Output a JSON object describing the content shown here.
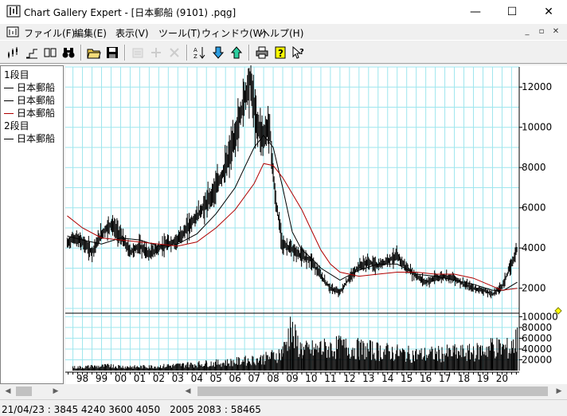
{
  "window": {
    "title": "Chart Gallery Expert - [日本郵船 (9101) .pqg]",
    "minimize_glyph": "—",
    "maximize_glyph": "☐",
    "close_glyph": "✕"
  },
  "menu": {
    "items": [
      {
        "label": "ファイル(F)"
      },
      {
        "label": "編集(E)"
      },
      {
        "label": "表示(V)"
      },
      {
        "label": "ツール(T)"
      },
      {
        "label": "ウィンドウ(W)"
      },
      {
        "label": "ヘルプ(H)"
      }
    ],
    "mdi_minimize_glyph": "_",
    "mdi_restore_glyph": "▫",
    "mdi_close_glyph": "✕"
  },
  "toolbar": {
    "buttons": [
      {
        "icon": "candlestick-chart-icon",
        "enabled": true
      },
      {
        "icon": "step-chart-icon",
        "enabled": true
      },
      {
        "icon": "split-view-icon",
        "enabled": true
      },
      {
        "icon": "binoculars-icon",
        "enabled": true
      },
      {
        "icon": "open-folder-icon",
        "enabled": true
      },
      {
        "icon": "save-disk-icon",
        "enabled": true
      },
      {
        "icon": "properties-icon",
        "enabled": false
      },
      {
        "icon": "add-icon",
        "enabled": false
      },
      {
        "icon": "delete-icon",
        "enabled": false
      },
      {
        "icon": "sort-icon",
        "enabled": true
      },
      {
        "icon": "download-arrow-icon",
        "enabled": true
      },
      {
        "icon": "upload-arrow-icon",
        "enabled": true
      },
      {
        "icon": "print-icon",
        "enabled": true
      },
      {
        "icon": "help-icon",
        "enabled": true
      },
      {
        "icon": "context-help-icon",
        "enabled": true
      }
    ]
  },
  "legend": {
    "section1_title": "1段目",
    "section1_items": [
      {
        "label": "日本郵船",
        "color": "#000000"
      },
      {
        "label": "日本郵船",
        "color": "#000000"
      },
      {
        "label": "日本郵船",
        "color": "#b00000"
      }
    ],
    "section2_title": "2段目",
    "section2_items": [
      {
        "label": "日本郵船",
        "color": "#000000"
      }
    ]
  },
  "chart_data": {
    "type": "line",
    "price_panel": {
      "yticks": [
        "12000",
        "10000",
        "8000",
        "6000",
        "4000",
        "2000"
      ],
      "ytick_values": [
        12000,
        10000,
        8000,
        6000,
        4000,
        2000
      ],
      "ylim": [
        800,
        13000
      ],
      "grid": true,
      "series": [
        {
          "name": "日本郵船",
          "color": "#000000",
          "style": "price-bars",
          "x": [
            1997.7,
            1998.0,
            1998.5,
            1999.0,
            1999.5,
            2000.0,
            2000.5,
            2001.0,
            2001.5,
            2002.0,
            2002.5,
            2003.0,
            2003.5,
            2004.0,
            2004.5,
            2005.0,
            2005.5,
            2006.0,
            2006.5,
            2007.0,
            2007.3,
            2007.6,
            2008.0,
            2008.3,
            2008.6,
            2009.0,
            2009.5,
            2010.0,
            2010.5,
            2011.0,
            2011.5,
            2012.0,
            2012.5,
            2013.0,
            2013.5,
            2014.0,
            2014.5,
            2015.0,
            2015.5,
            2016.0,
            2016.5,
            2017.0,
            2017.5,
            2018.0,
            2018.5,
            2019.0,
            2019.5,
            2020.0,
            2020.5,
            2021.0,
            2021.3
          ],
          "y": [
            4200,
            4500,
            4300,
            3800,
            4700,
            5200,
            4600,
            3800,
            4100,
            3700,
            4000,
            4200,
            4400,
            5000,
            5600,
            6200,
            7000,
            8000,
            9500,
            11500,
            12400,
            10300,
            9500,
            10200,
            6500,
            4200,
            3900,
            3600,
            3400,
            2600,
            2000,
            1800,
            2500,
            3100,
            3300,
            3100,
            3400,
            3600,
            3000,
            2600,
            2300,
            2500,
            2600,
            2500,
            2200,
            2000,
            1900,
            1700,
            2100,
            3200,
            4000
          ]
        },
        {
          "name": "日本郵船",
          "color": "#000000",
          "style": "moving-average",
          "x": [
            1997.7,
            1998.5,
            1999.5,
            2000.5,
            2001.5,
            2002.5,
            2003.5,
            2004.5,
            2005.5,
            2006.5,
            2007.0,
            2007.5,
            2008.0,
            2008.5,
            2009.0,
            2009.5,
            2010.0,
            2010.5,
            2011.0,
            2012.0,
            2013.0,
            2014.0,
            2015.0,
            2016.0,
            2017.0,
            2018.0,
            2019.0,
            2020.0,
            2020.6,
            2021.3
          ],
          "y": [
            4600,
            4400,
            4200,
            4500,
            4400,
            4100,
            4200,
            4700,
            5700,
            7000,
            8000,
            9000,
            9600,
            9000,
            7000,
            4800,
            3900,
            3500,
            3000,
            2400,
            2900,
            3200,
            3200,
            2700,
            2600,
            2400,
            2200,
            1900,
            1900,
            2300
          ]
        },
        {
          "name": "日本郵船",
          "color": "#b00000",
          "style": "moving-average",
          "x": [
            1997.7,
            1998.5,
            1999.5,
            2000.5,
            2001.5,
            2002.5,
            2003.5,
            2004.5,
            2005.5,
            2006.5,
            2007.5,
            2008.0,
            2008.5,
            2009.0,
            2009.5,
            2010.0,
            2010.5,
            2011.0,
            2011.5,
            2012.0,
            2013.0,
            2014.0,
            2015.0,
            2016.0,
            2017.0,
            2018.0,
            2019.0,
            2020.0,
            2020.5,
            2021.3
          ],
          "y": [
            5600,
            5000,
            4500,
            4400,
            4300,
            4200,
            4100,
            4300,
            5000,
            5900,
            7200,
            8200,
            8100,
            7500,
            6700,
            5900,
            4900,
            3900,
            3200,
            2800,
            2600,
            2700,
            2800,
            2800,
            2700,
            2700,
            2500,
            2100,
            1900,
            2000
          ]
        }
      ]
    },
    "volume_panel": {
      "yticks": [
        "100000",
        "80000",
        "60000",
        "40000",
        "20000"
      ],
      "ytick_values": [
        100000,
        80000,
        60000,
        40000,
        20000
      ],
      "ylim": [
        0,
        105000
      ],
      "series": [
        {
          "name": "日本郵船",
          "color": "#000000",
          "style": "volume-bars",
          "x": [
            1998,
            1999,
            2000,
            2001,
            2002,
            2003,
            2004,
            2005,
            2006,
            2007,
            2008,
            2009,
            2009.4,
            2010,
            2011,
            2012,
            2013,
            2014,
            2015,
            2016,
            2017,
            2018,
            2019,
            2020,
            2021,
            2021.3
          ],
          "y": [
            8000,
            10000,
            12000,
            9000,
            10000,
            12000,
            15000,
            18000,
            20000,
            25000,
            30000,
            45000,
            100000,
            50000,
            55000,
            60000,
            55000,
            50000,
            45000,
            40000,
            42000,
            45000,
            45000,
            60000,
            55000,
            80000
          ]
        }
      ]
    },
    "xaxis": {
      "ticks": [
        "98",
        "99",
        "00",
        "01",
        "02",
        "03",
        "04",
        "05",
        "06",
        "07",
        "08",
        "09",
        "10",
        "11",
        "12",
        "13",
        "14",
        "15",
        "16",
        "17",
        "18",
        "19",
        "20"
      ],
      "tick_values": [
        1998,
        1999,
        2000,
        2001,
        2002,
        2003,
        2004,
        2005,
        2006,
        2007,
        2008,
        2009,
        2010,
        2011,
        2012,
        2013,
        2014,
        2015,
        2016,
        2017,
        2018,
        2019,
        2020
      ],
      "xlim": [
        1997.6,
        2021.4
      ]
    }
  },
  "statusbar": {
    "text": "21/04/23 : 3845 4240 3600 4050　2005 2083 : 58465"
  },
  "scroll": {
    "left_arrow": "◀",
    "right_arrow": "▶"
  }
}
